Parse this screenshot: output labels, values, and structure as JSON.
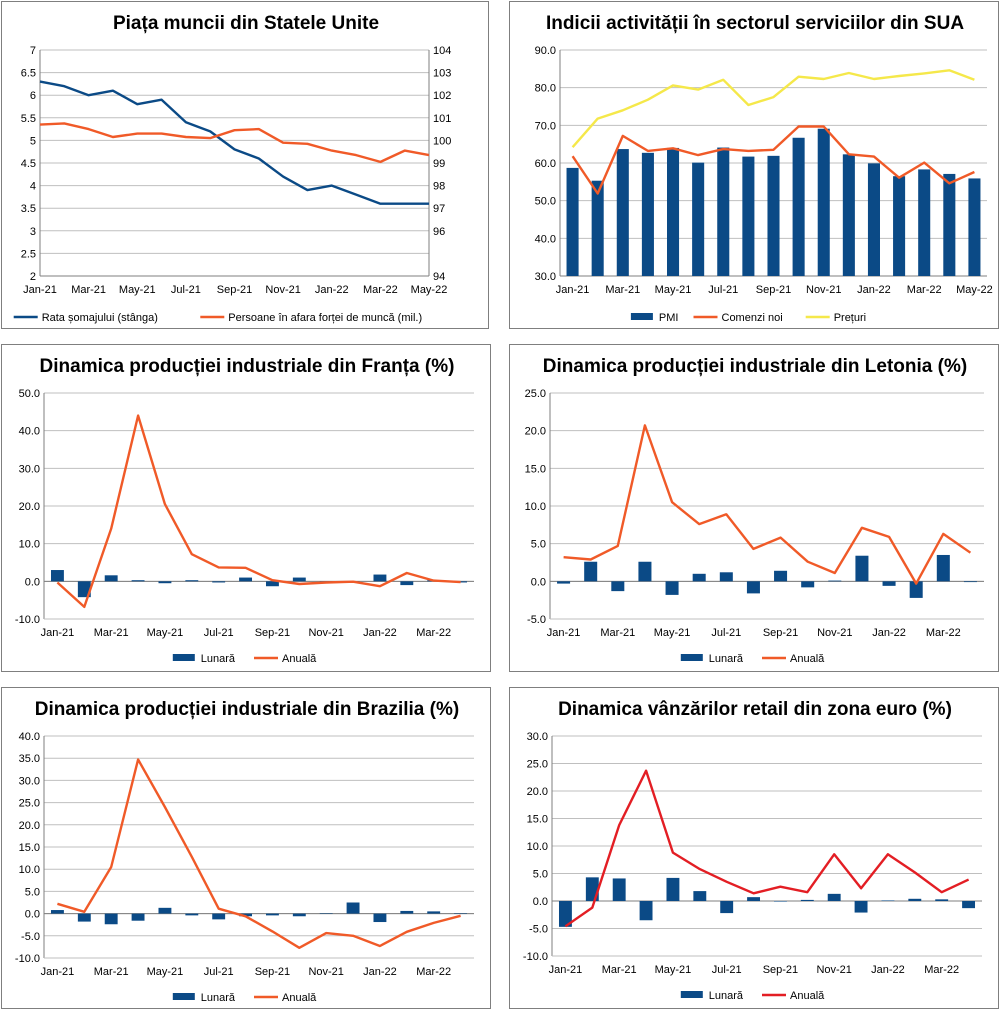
{
  "colors": {
    "blue": "#0b4a86",
    "orange": "#f05a28",
    "yellow": "#f5e84a",
    "red": "#e31e24",
    "grid": "#bfbfbf",
    "axis": "#7f7f7f"
  },
  "chart_data": [
    {
      "id": "us-labor",
      "type": "line",
      "title": "Piața muncii din Statele Unite",
      "categories": [
        "Jan-21",
        "Feb-21",
        "Mar-21",
        "Apr-21",
        "May-21",
        "Jun-21",
        "Jul-21",
        "Aug-21",
        "Sep-21",
        "Oct-21",
        "Nov-21",
        "Dec-21",
        "Jan-22",
        "Feb-22",
        "Mar-22",
        "Apr-22",
        "May-22"
      ],
      "x_tick_labels": [
        "Jan-21",
        "Mar-21",
        "May-21",
        "Jul-21",
        "Sep-21",
        "Nov-21",
        "Jan-22",
        "Mar-22",
        "May-22"
      ],
      "ylim": [
        2,
        7
      ],
      "y_ticks": [
        "2",
        "2.5",
        "3",
        "3.5",
        "4",
        "4.5",
        "5",
        "5.5",
        "6",
        "6.5",
        "7"
      ],
      "y2lim": [
        94,
        104
      ],
      "y2_ticks": [
        "94",
        "96",
        "97",
        "98",
        "99",
        "100",
        "101",
        "102",
        "103",
        "104"
      ],
      "y2_tick_values": [
        94,
        95,
        96,
        97,
        98,
        99,
        100,
        101,
        102,
        103,
        104
      ],
      "y2_tick_labels_shown": [
        "94",
        "",
        "96",
        "97",
        "98",
        "99",
        "100",
        "101",
        "102",
        "103",
        "104"
      ],
      "series": [
        {
          "name": "Rata șomajului (stânga)",
          "kind": "line",
          "axis": "left",
          "color": "#0b4a86",
          "values": [
            6.3,
            6.2,
            6.0,
            6.1,
            5.8,
            5.9,
            5.4,
            5.2,
            4.8,
            4.6,
            4.2,
            3.9,
            4.0,
            3.8,
            3.6,
            3.6,
            3.6
          ]
        },
        {
          "name": "Persoane în afara forței de muncă (mil.)",
          "kind": "line",
          "axis": "right",
          "color": "#f05a28",
          "values": [
            100.7,
            100.75,
            100.5,
            100.15,
            100.3,
            100.3,
            100.15,
            100.1,
            100.45,
            100.5,
            99.9,
            99.85,
            99.55,
            99.35,
            99.05,
            99.55,
            99.35
          ]
        }
      ]
    },
    {
      "id": "us-services",
      "type": "bar-line",
      "title": "Indicii activității în sectorul serviciilor din SUA",
      "categories": [
        "Jan-21",
        "Feb-21",
        "Mar-21",
        "Apr-21",
        "May-21",
        "Jun-21",
        "Jul-21",
        "Aug-21",
        "Sep-21",
        "Oct-21",
        "Nov-21",
        "Dec-21",
        "Jan-22",
        "Feb-22",
        "Mar-22",
        "Apr-22",
        "May-22"
      ],
      "x_tick_labels": [
        "Jan-21",
        "Mar-21",
        "May-21",
        "Jul-21",
        "Sep-21",
        "Nov-21",
        "Jan-22",
        "Mar-22",
        "May-22"
      ],
      "ylim": [
        30,
        90
      ],
      "y_ticks": [
        "30.0",
        "40.0",
        "50.0",
        "60.0",
        "70.0",
        "80.0",
        "90.0"
      ],
      "series": [
        {
          "name": "PMI",
          "kind": "bar",
          "color": "#0b4a86",
          "values": [
            58.7,
            55.3,
            63.7,
            62.7,
            64.0,
            60.1,
            64.1,
            61.7,
            61.9,
            66.7,
            69.1,
            62.3,
            59.9,
            56.5,
            58.3,
            57.1,
            55.9
          ]
        },
        {
          "name": "Comenzi noi",
          "kind": "line",
          "color": "#f05a28",
          "values": [
            61.8,
            51.9,
            67.2,
            63.2,
            63.9,
            62.1,
            63.7,
            63.2,
            63.5,
            69.7,
            69.7,
            62.3,
            61.7,
            56.1,
            60.1,
            54.6,
            57.6
          ]
        },
        {
          "name": "Prețuri",
          "kind": "line",
          "color": "#f5e84a",
          "values": [
            64.2,
            71.8,
            74.0,
            76.8,
            80.6,
            79.5,
            82.1,
            75.4,
            77.5,
            82.9,
            82.3,
            83.9,
            82.3,
            83.1,
            83.8,
            84.6,
            82.1
          ]
        }
      ]
    },
    {
      "id": "france-ip",
      "type": "bar-line",
      "title": "Dinamica producției industriale din Franța (%)",
      "categories": [
        "Jan-21",
        "Feb-21",
        "Mar-21",
        "Apr-21",
        "May-21",
        "Jun-21",
        "Jul-21",
        "Aug-21",
        "Sep-21",
        "Oct-21",
        "Nov-21",
        "Dec-21",
        "Jan-22",
        "Feb-22",
        "Mar-22",
        "Apr-22"
      ],
      "x_tick_labels": [
        "Jan-21",
        "Mar-21",
        "May-21",
        "Jul-21",
        "Sep-21",
        "Nov-21",
        "Jan-22",
        "Mar-22"
      ],
      "ylim": [
        -10,
        50
      ],
      "y_ticks": [
        "-10.0",
        "0.0",
        "10.0",
        "20.0",
        "30.0",
        "40.0",
        "50.0"
      ],
      "series": [
        {
          "name": "Lunară",
          "kind": "bar",
          "color": "#0b4a86",
          "values": [
            3.0,
            -4.2,
            1.6,
            0.3,
            -0.5,
            0.3,
            -0.3,
            1.0,
            -1.3,
            1.0,
            -0.5,
            -0.3,
            1.8,
            -1.0,
            0.3,
            -0.3
          ]
        },
        {
          "name": "Anuală",
          "kind": "line",
          "color": "#f05a28",
          "values": [
            -0.3,
            -6.8,
            14.0,
            44.0,
            20.5,
            7.2,
            3.7,
            3.6,
            0.3,
            -0.7,
            -0.3,
            -0.1,
            -1.3,
            2.2,
            0.2,
            -0.2
          ]
        }
      ]
    },
    {
      "id": "latvia-ip",
      "type": "bar-line",
      "title": "Dinamica producției industriale din Letonia (%)",
      "categories": [
        "Jan-21",
        "Feb-21",
        "Mar-21",
        "Apr-21",
        "May-21",
        "Jun-21",
        "Jul-21",
        "Aug-21",
        "Sep-21",
        "Oct-21",
        "Nov-21",
        "Dec-21",
        "Jan-22",
        "Feb-22",
        "Mar-22",
        "Apr-22"
      ],
      "x_tick_labels": [
        "Jan-21",
        "Mar-21",
        "May-21",
        "Jul-21",
        "Sep-21",
        "Nov-21",
        "Jan-22",
        "Mar-22"
      ],
      "ylim": [
        -5,
        25
      ],
      "y_ticks": [
        "-5.0",
        "0.0",
        "5.0",
        "10.0",
        "15.0",
        "20.0",
        "25.0"
      ],
      "series": [
        {
          "name": "Lunară",
          "kind": "bar",
          "color": "#0b4a86",
          "values": [
            -0.3,
            2.6,
            -1.3,
            2.6,
            -1.8,
            1.0,
            1.2,
            -1.6,
            1.4,
            -0.8,
            0.1,
            3.4,
            -0.6,
            -2.2,
            3.5,
            -0.1
          ]
        },
        {
          "name": "Anuală",
          "kind": "line",
          "color": "#f05a28",
          "values": [
            3.2,
            2.9,
            4.7,
            20.7,
            10.5,
            7.6,
            8.9,
            4.3,
            5.8,
            2.6,
            1.1,
            7.1,
            5.9,
            -0.3,
            6.3,
            3.8
          ]
        }
      ]
    },
    {
      "id": "brazil-ip",
      "type": "bar-line",
      "title": "Dinamica producției industriale din Brazilia (%)",
      "categories": [
        "Jan-21",
        "Feb-21",
        "Mar-21",
        "Apr-21",
        "May-21",
        "Jun-21",
        "Jul-21",
        "Aug-21",
        "Sep-21",
        "Oct-21",
        "Nov-21",
        "Dec-21",
        "Jan-22",
        "Feb-22",
        "Mar-22",
        "Apr-22"
      ],
      "x_tick_labels": [
        "Jan-21",
        "Mar-21",
        "May-21",
        "Jul-21",
        "Sep-21",
        "Nov-21",
        "Jan-22",
        "Mar-22"
      ],
      "ylim": [
        -10,
        40
      ],
      "y_ticks": [
        "-10.0",
        "-5.0",
        "0.0",
        "5.0",
        "10.0",
        "15.0",
        "20.0",
        "25.0",
        "30.0",
        "35.0",
        "40.0"
      ],
      "series": [
        {
          "name": "Lunară",
          "kind": "bar",
          "color": "#0b4a86",
          "values": [
            0.8,
            -1.8,
            -2.4,
            -1.6,
            1.3,
            -0.4,
            -1.3,
            -0.6,
            -0.4,
            -0.6,
            0.1,
            2.5,
            -1.9,
            0.6,
            0.5,
            0.1
          ]
        },
        {
          "name": "Anuală",
          "kind": "line",
          "color": "#f05a28",
          "values": [
            2.2,
            0.4,
            10.5,
            34.7,
            24.0,
            12.8,
            1.1,
            -0.6,
            -4.0,
            -7.7,
            -4.4,
            -5.0,
            -7.3,
            -4.1,
            -2.1,
            -0.5
          ]
        }
      ]
    },
    {
      "id": "eurozone-retail",
      "type": "bar-line",
      "title": "Dinamica vânzărilor retail din zona euro (%)",
      "categories": [
        "Jan-21",
        "Feb-21",
        "Mar-21",
        "Apr-21",
        "May-21",
        "Jun-21",
        "Jul-21",
        "Aug-21",
        "Sep-21",
        "Oct-21",
        "Nov-21",
        "Dec-21",
        "Jan-22",
        "Feb-22",
        "Mar-22",
        "Apr-22"
      ],
      "x_tick_labels": [
        "Jan-21",
        "Mar-21",
        "May-21",
        "Jul-21",
        "Sep-21",
        "Nov-21",
        "Jan-22",
        "Mar-22"
      ],
      "ylim": [
        -10,
        30
      ],
      "y_ticks": [
        "-10.0",
        "-5.0",
        "0.0",
        "5.0",
        "10.0",
        "15.0",
        "20.0",
        "25.0",
        "30.0"
      ],
      "series": [
        {
          "name": "Lunară",
          "kind": "bar",
          "color": "#0b4a86",
          "values": [
            -4.7,
            4.3,
            4.1,
            -3.5,
            4.2,
            1.8,
            -2.2,
            0.7,
            -0.1,
            0.2,
            1.3,
            -2.1,
            0.1,
            0.4,
            0.3,
            -1.3
          ]
        },
        {
          "name": "Anuală",
          "kind": "line",
          "color": "#e31e24",
          "values": [
            -4.6,
            -1.2,
            13.8,
            23.7,
            8.8,
            5.8,
            3.5,
            1.4,
            2.6,
            1.6,
            8.5,
            2.3,
            8.5,
            5.2,
            1.6,
            3.9
          ]
        }
      ]
    }
  ]
}
